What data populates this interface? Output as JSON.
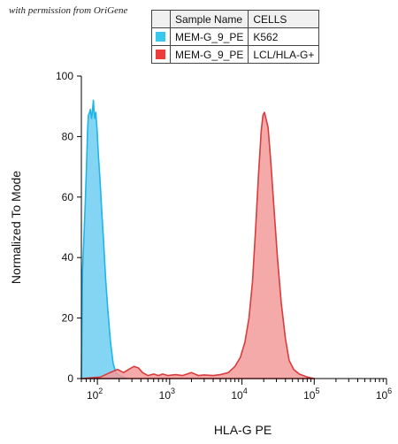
{
  "credit": "with permission from OriGene",
  "legend": {
    "headers": [
      "Sample Name",
      "CELLS"
    ],
    "rows": [
      {
        "sample": "MEM-G_9_PE",
        "cells": "K562",
        "color": "#38C8EC"
      },
      {
        "sample": "MEM-G_9_PE",
        "cells": "LCL/HLA-G+",
        "color": "#EE3B3B"
      }
    ]
  },
  "chart_data": {
    "type": "area",
    "title": "",
    "xlabel": "HLA-G PE",
    "ylabel": "Normalized To Mode",
    "xscale": "log",
    "xlim": [
      60,
      1000000
    ],
    "ylim": [
      0,
      100
    ],
    "yticks": [
      0,
      20,
      40,
      60,
      80,
      100
    ],
    "xticks": [
      {
        "value": 100,
        "base": "10",
        "exp": "2"
      },
      {
        "value": 1000,
        "base": "10",
        "exp": "3"
      },
      {
        "value": 10000,
        "base": "10",
        "exp": "4"
      },
      {
        "value": 100000,
        "base": "10",
        "exp": "5"
      },
      {
        "value": 1000000,
        "base": "10",
        "exp": "6"
      }
    ],
    "series": [
      {
        "name": "K562",
        "fill": "#7DD3F2",
        "stroke": "#1EB6E8",
        "points": [
          [
            60,
            0
          ],
          [
            62,
            35
          ],
          [
            65,
            46
          ],
          [
            68,
            58
          ],
          [
            71,
            72
          ],
          [
            73,
            82
          ],
          [
            75,
            87
          ],
          [
            78,
            88
          ],
          [
            80,
            89
          ],
          [
            83,
            86
          ],
          [
            85,
            88
          ],
          [
            88,
            92
          ],
          [
            90,
            88
          ],
          [
            92,
            86
          ],
          [
            95,
            88
          ],
          [
            99,
            82
          ],
          [
            103,
            74
          ],
          [
            109,
            65
          ],
          [
            115,
            55
          ],
          [
            122,
            45
          ],
          [
            130,
            33
          ],
          [
            140,
            22
          ],
          [
            152,
            12
          ],
          [
            165,
            5
          ],
          [
            180,
            2
          ],
          [
            200,
            1
          ],
          [
            230,
            0.5
          ],
          [
            260,
            0
          ]
        ]
      },
      {
        "name": "LCL/HLA-G+",
        "fill": "#F39B9B",
        "stroke": "#D83C3C",
        "points": [
          [
            60,
            0
          ],
          [
            110,
            0.5
          ],
          [
            150,
            2
          ],
          [
            190,
            3
          ],
          [
            230,
            2
          ],
          [
            270,
            3
          ],
          [
            320,
            4
          ],
          [
            370,
            3.5
          ],
          [
            420,
            2
          ],
          [
            500,
            1
          ],
          [
            600,
            1.5
          ],
          [
            700,
            1
          ],
          [
            800,
            1.5
          ],
          [
            950,
            1
          ],
          [
            1200,
            1.3
          ],
          [
            1500,
            1
          ],
          [
            2000,
            2
          ],
          [
            2500,
            1
          ],
          [
            3000,
            1.2
          ],
          [
            4000,
            1
          ],
          [
            5000,
            1.3
          ],
          [
            6500,
            2
          ],
          [
            8000,
            4
          ],
          [
            9500,
            7
          ],
          [
            11000,
            12
          ],
          [
            12500,
            20
          ],
          [
            14000,
            32
          ],
          [
            15500,
            50
          ],
          [
            17000,
            68
          ],
          [
            18500,
            82
          ],
          [
            19500,
            87
          ],
          [
            20500,
            88
          ],
          [
            21500,
            86
          ],
          [
            23000,
            83
          ],
          [
            25000,
            72
          ],
          [
            28000,
            55
          ],
          [
            31000,
            40
          ],
          [
            35000,
            25
          ],
          [
            40000,
            13
          ],
          [
            45000,
            6
          ],
          [
            52000,
            3
          ],
          [
            62000,
            1.5
          ],
          [
            80000,
            0.5
          ],
          [
            100000,
            0
          ]
        ]
      }
    ]
  }
}
